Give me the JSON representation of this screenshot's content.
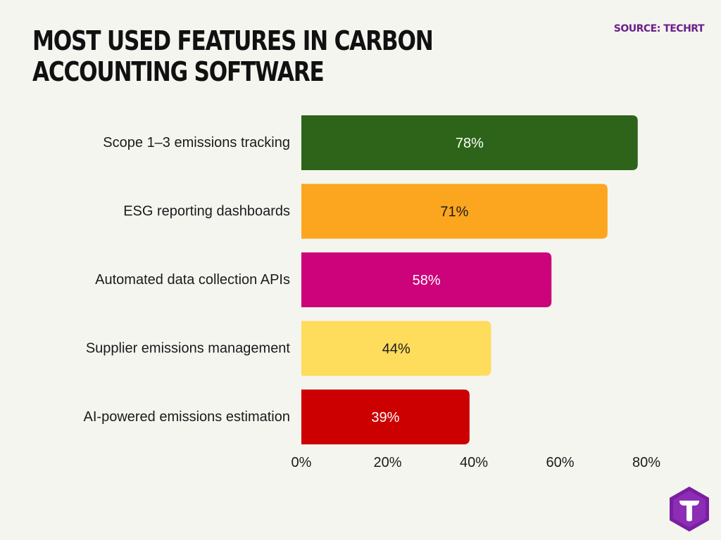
{
  "header": {
    "title": "MOST USED FEATURES IN CARBON ACCOUNTING SOFTWARE",
    "source": "SOURCE: TECHRT"
  },
  "chart_data": {
    "type": "bar",
    "orientation": "horizontal",
    "title": "MOST USED FEATURES IN CARBON ACCOUNTING SOFTWARE",
    "categories": [
      "Scope 1–3 emissions tracking",
      "ESG reporting dashboards",
      "Automated data collection APIs",
      "Supplier emissions management",
      "AI-powered emissions estimation"
    ],
    "values": [
      78,
      71,
      58,
      44,
      39
    ],
    "value_labels": [
      "78%",
      "71%",
      "58%",
      "44%",
      "39%"
    ],
    "bar_colors": [
      "#2d6419",
      "#fca61f",
      "#cc037a",
      "#fedc5c",
      "#cc0000"
    ],
    "label_colors": [
      "#ffffff",
      "#1a1a1a",
      "#ffffff",
      "#1a1a1a",
      "#ffffff"
    ],
    "xlim": [
      0,
      80
    ],
    "xticks": [
      0,
      20,
      40,
      60,
      80
    ],
    "xtick_labels": [
      "0%",
      "20%",
      "40%",
      "60%",
      "80%"
    ],
    "xlabel": "",
    "ylabel": "",
    "grid": false,
    "legend": "none"
  },
  "logo": {
    "name": "techrt-logo-icon",
    "color": "#7a1fa0"
  }
}
